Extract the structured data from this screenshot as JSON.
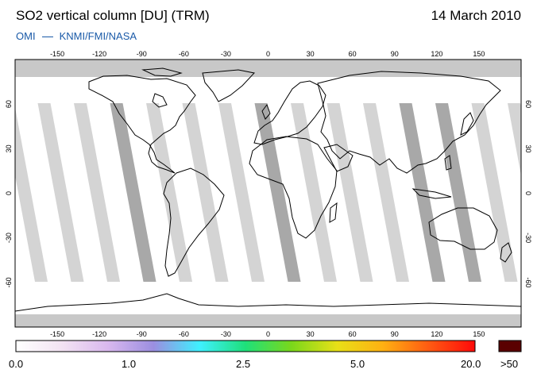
{
  "header": {
    "title": "SO2 vertical column [DU] (TRM)",
    "date": "14 March 2010",
    "credit_left": "OMI",
    "credit_right": "KNMI/FMI/NASA"
  },
  "map": {
    "projection": "equirectangular",
    "lon_range": [
      -180,
      180
    ],
    "lat_range": [
      -90,
      90
    ],
    "lon_ticks": [
      "-150",
      "-120",
      "-90",
      "-60",
      "-30",
      "0",
      "30",
      "60",
      "90",
      "120",
      "150"
    ],
    "lat_ticks": [
      "60",
      "30",
      "0",
      "-30",
      "-60"
    ],
    "colors": {
      "frame": "#000000",
      "land_outline": "#000000",
      "swath_gap": "#d4d4d4",
      "swath_gap_dark": "#a8a8a8",
      "polar_mask": "#c8c8c8"
    }
  },
  "colorbar": {
    "labels": [
      "0.0",
      "1.0",
      "2.5",
      "5.0",
      "20.0"
    ],
    "overflow_label": ">50",
    "overflow_color": "#5a0000",
    "gradient_stops": [
      "#ffffff",
      "#f3e3f3",
      "#d9b8ee",
      "#9b8ee0",
      "#3ff0ff",
      "#1ee07a",
      "#7ad81b",
      "#e8e017",
      "#ffb012",
      "#ff5a12",
      "#ff0a0a"
    ]
  }
}
